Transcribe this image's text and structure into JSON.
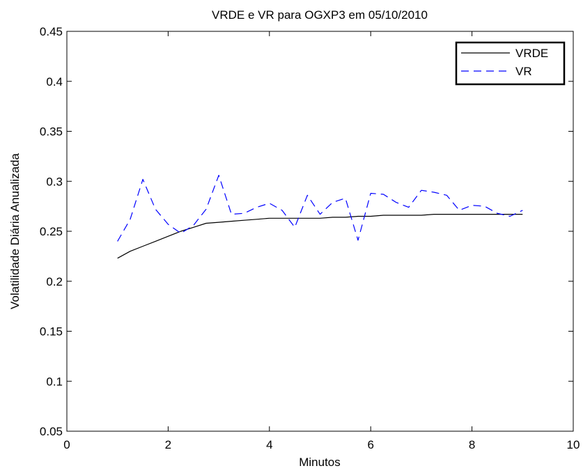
{
  "chart_data": {
    "type": "line",
    "title": "VRDE e VR para OGXP3 em 05/10/2010",
    "xlabel": "Minutos",
    "ylabel": "Volatilidade Diária Anualizada",
    "xlim": [
      0,
      10
    ],
    "ylim": [
      0.05,
      0.45
    ],
    "xticks": [
      0,
      2,
      4,
      6,
      8,
      10
    ],
    "xtick_labels": [
      "0",
      "2",
      "4",
      "6",
      "8",
      "10"
    ],
    "yticks": [
      0.05,
      0.1,
      0.15,
      0.2,
      0.25,
      0.3,
      0.35,
      0.4,
      0.45
    ],
    "ytick_labels": [
      "0.05",
      "0.1",
      "0.15",
      "0.2",
      "0.25",
      "0.3",
      "0.35",
      "0.4",
      "0.45"
    ],
    "grid": false,
    "legend_position": "top-right",
    "series": [
      {
        "name": "VRDE",
        "color": "#000000",
        "style": "solid",
        "x": [
          1,
          1.25,
          1.5,
          1.75,
          2,
          2.25,
          2.5,
          2.75,
          3,
          3.25,
          3.5,
          3.75,
          4,
          4.25,
          4.5,
          4.75,
          5,
          5.25,
          5.5,
          5.75,
          6,
          6.25,
          6.5,
          6.75,
          7,
          7.25,
          7.5,
          7.75,
          8,
          8.25,
          8.5,
          8.75,
          9
        ],
        "y": [
          0.223,
          0.23,
          0.235,
          0.24,
          0.245,
          0.25,
          0.254,
          0.258,
          0.259,
          0.26,
          0.261,
          0.262,
          0.263,
          0.263,
          0.263,
          0.263,
          0.263,
          0.264,
          0.264,
          0.265,
          0.265,
          0.266,
          0.266,
          0.266,
          0.266,
          0.267,
          0.267,
          0.267,
          0.267,
          0.267,
          0.267,
          0.267,
          0.267
        ]
      },
      {
        "name": "VR",
        "color": "#0000ff",
        "style": "dashed",
        "x": [
          1,
          1.25,
          1.5,
          1.75,
          2,
          2.25,
          2.5,
          2.75,
          3,
          3.25,
          3.5,
          3.75,
          4,
          4.25,
          4.5,
          4.75,
          5,
          5.25,
          5.5,
          5.75,
          6,
          6.25,
          6.5,
          6.75,
          7,
          7.25,
          7.5,
          7.75,
          8,
          8.25,
          8.5,
          8.75,
          9
        ],
        "y": [
          0.24,
          0.262,
          0.302,
          0.272,
          0.257,
          0.248,
          0.256,
          0.272,
          0.306,
          0.267,
          0.268,
          0.274,
          0.278,
          0.271,
          0.254,
          0.286,
          0.267,
          0.279,
          0.283,
          0.241,
          0.288,
          0.287,
          0.279,
          0.274,
          0.291,
          0.289,
          0.286,
          0.271,
          0.276,
          0.275,
          0.268,
          0.265,
          0.271
        ]
      }
    ]
  }
}
